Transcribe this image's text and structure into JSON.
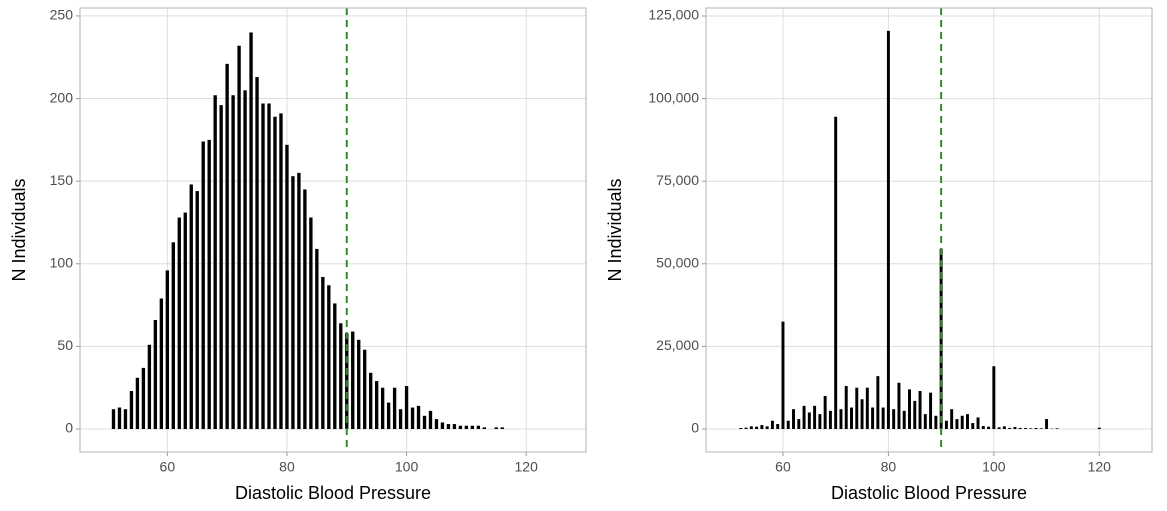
{
  "chart_data": [
    {
      "type": "bar",
      "x_label": "Diastolic Blood Pressure",
      "y_label": "N Individuals",
      "x": [
        51,
        52,
        53,
        54,
        55,
        56,
        57,
        58,
        59,
        60,
        61,
        62,
        63,
        64,
        65,
        66,
        67,
        68,
        69,
        70,
        71,
        72,
        73,
        74,
        75,
        76,
        77,
        78,
        79,
        80,
        81,
        82,
        83,
        84,
        85,
        86,
        87,
        88,
        89,
        90,
        91,
        92,
        93,
        94,
        95,
        96,
        97,
        98,
        99,
        100,
        101,
        102,
        103,
        104,
        105,
        106,
        107,
        108,
        109,
        110,
        111,
        112,
        113,
        115,
        116
      ],
      "values": [
        12,
        13,
        12,
        23,
        31,
        37,
        51,
        66,
        79,
        96,
        113,
        128,
        131,
        148,
        144,
        174,
        175,
        202,
        196,
        221,
        202,
        232,
        205,
        240,
        213,
        197,
        197,
        189,
        191,
        172,
        153,
        155,
        145,
        128,
        109,
        92,
        87,
        76,
        64,
        58,
        59,
        54,
        48,
        34,
        29,
        25,
        16,
        25,
        12,
        26,
        13,
        14,
        8,
        11,
        6,
        4,
        3,
        3,
        2,
        2,
        2,
        2,
        1,
        1,
        1
      ],
      "color": "#000000",
      "vline": 90,
      "vline_color": "#2e8b2e",
      "xlim": [
        45.4,
        130
      ],
      "xticks": [
        60,
        80,
        100,
        120
      ],
      "ylim": [
        -13.9,
        254.8
      ],
      "yticks": [
        0,
        50,
        100,
        150,
        200,
        250
      ],
      "grid": true
    },
    {
      "type": "bar",
      "x_label": "Diastolic Blood Pressure",
      "y_label": "N Individuals",
      "x": [
        52,
        53,
        54,
        55,
        56,
        57,
        58,
        59,
        60,
        61,
        62,
        63,
        64,
        65,
        66,
        67,
        68,
        69,
        70,
        71,
        72,
        73,
        74,
        75,
        76,
        77,
        78,
        79,
        80,
        81,
        82,
        83,
        84,
        85,
        86,
        87,
        88,
        89,
        90,
        91,
        92,
        93,
        94,
        95,
        96,
        97,
        98,
        99,
        100,
        101,
        102,
        103,
        104,
        105,
        106,
        107,
        108,
        109,
        110,
        111,
        112,
        120
      ],
      "values": [
        300,
        400,
        800,
        700,
        1200,
        800,
        2500,
        1500,
        32500,
        2500,
        6000,
        3000,
        7000,
        5000,
        7000,
        4500,
        10000,
        5500,
        94500,
        6000,
        13000,
        6500,
        12500,
        9000,
        12500,
        6500,
        16000,
        6500,
        120500,
        6000,
        14000,
        5500,
        12000,
        8500,
        11500,
        4500,
        11000,
        4000,
        54500,
        2500,
        6000,
        3000,
        4000,
        4500,
        1800,
        3500,
        900,
        700,
        19000,
        500,
        800,
        300,
        600,
        300,
        300,
        200,
        300,
        200,
        3000,
        100,
        200,
        400
      ],
      "color": "#000000",
      "vline": 90,
      "vline_color": "#2e8b2e",
      "xlim": [
        45.4,
        130
      ],
      "xticks": [
        60,
        80,
        100,
        120
      ],
      "ylim": [
        -6960,
        127420
      ],
      "yticks": [
        0,
        {
          "value": 25000,
          "label": "25,000"
        },
        {
          "value": 50000,
          "label": "50,000"
        },
        {
          "value": 75000,
          "label": "75,000"
        },
        {
          "value": 100000,
          "label": "100,000"
        },
        {
          "value": 125000,
          "label": "125,000"
        }
      ],
      "grid": true
    }
  ]
}
